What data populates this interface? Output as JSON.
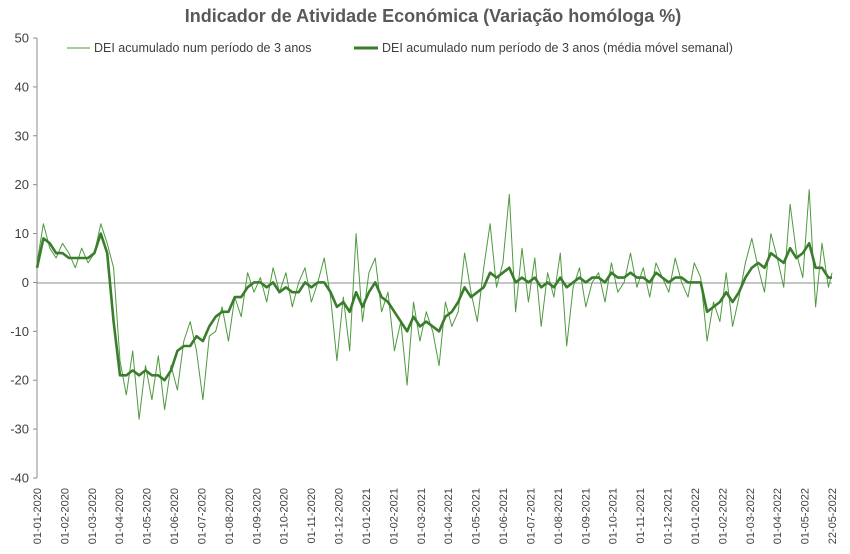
{
  "chart_data": {
    "type": "line",
    "title": "Indicador de Atividade Económica (Variação homóloga %)",
    "xlabel": "",
    "ylabel": "",
    "ylim": [
      -40,
      50
    ],
    "yticks": [
      50,
      40,
      30,
      20,
      10,
      0,
      -10,
      -20,
      -30,
      -40
    ],
    "x_tick_labels": [
      "01-01-2020",
      "01-02-2020",
      "01-03-2020",
      "01-04-2020",
      "01-05-2020",
      "01-06-2020",
      "01-07-2020",
      "01-08-2020",
      "01-09-2020",
      "01-10-2020",
      "01-11-2020",
      "01-12-2020",
      "01-01-2021",
      "01-02-2021",
      "01-03-2021",
      "01-04-2021",
      "01-05-2021",
      "01-06-2021",
      "01-07-2021",
      "01-08-2021",
      "01-09-2021",
      "01-10-2021",
      "01-11-2021",
      "01-12-2021",
      "01-01-2022",
      "01-02-2022",
      "01-03-2022",
      "01-04-2022",
      "01-05-2022",
      "22-05-2022"
    ],
    "grid": false,
    "legend_position": "top",
    "colors": {
      "daily": "#4e9a3e",
      "weekly": "#3a7d2c"
    },
    "series": [
      {
        "name": "DEI acumulado num período de 3 anos",
        "style": "thin",
        "x": [
          "2020-01-01",
          "2020-01-08",
          "2020-01-15",
          "2020-01-22",
          "2020-01-29",
          "2020-02-05",
          "2020-02-12",
          "2020-02-19",
          "2020-02-26",
          "2020-03-04",
          "2020-03-11",
          "2020-03-18",
          "2020-03-25",
          "2020-04-01",
          "2020-04-08",
          "2020-04-15",
          "2020-04-22",
          "2020-04-29",
          "2020-05-06",
          "2020-05-13",
          "2020-05-20",
          "2020-05-27",
          "2020-06-03",
          "2020-06-10",
          "2020-06-17",
          "2020-06-24",
          "2020-07-01",
          "2020-07-08",
          "2020-07-15",
          "2020-07-22",
          "2020-07-29",
          "2020-08-05",
          "2020-08-12",
          "2020-08-19",
          "2020-08-26",
          "2020-09-02",
          "2020-09-09",
          "2020-09-16",
          "2020-09-23",
          "2020-09-30",
          "2020-10-07",
          "2020-10-14",
          "2020-10-21",
          "2020-10-28",
          "2020-11-04",
          "2020-11-11",
          "2020-11-18",
          "2020-11-25",
          "2020-12-02",
          "2020-12-09",
          "2020-12-16",
          "2020-12-23",
          "2020-12-30",
          "2021-01-06",
          "2021-01-13",
          "2021-01-20",
          "2021-01-27",
          "2021-02-03",
          "2021-02-10",
          "2021-02-17",
          "2021-02-24",
          "2021-03-03",
          "2021-03-10",
          "2021-03-17",
          "2021-03-24",
          "2021-03-31",
          "2021-04-07",
          "2021-04-14",
          "2021-04-21",
          "2021-04-28",
          "2021-05-05",
          "2021-05-12",
          "2021-05-19",
          "2021-05-26",
          "2021-06-02",
          "2021-06-09",
          "2021-06-16",
          "2021-06-23",
          "2021-06-30",
          "2021-07-07",
          "2021-07-14",
          "2021-07-21",
          "2021-07-28",
          "2021-08-04",
          "2021-08-11",
          "2021-08-18",
          "2021-08-25",
          "2021-09-01",
          "2021-09-08",
          "2021-09-15",
          "2021-09-22",
          "2021-09-29",
          "2021-10-06",
          "2021-10-13",
          "2021-10-20",
          "2021-10-27",
          "2021-11-03",
          "2021-11-10",
          "2021-11-17",
          "2021-11-24",
          "2021-12-01",
          "2021-12-08",
          "2021-12-15",
          "2021-12-22",
          "2021-12-29",
          "2022-01-05",
          "2022-01-12",
          "2022-01-19",
          "2022-01-26",
          "2022-02-02",
          "2022-02-09",
          "2022-02-16",
          "2022-02-23",
          "2022-03-02",
          "2022-03-09",
          "2022-03-16",
          "2022-03-23",
          "2022-03-30",
          "2022-04-06",
          "2022-04-13",
          "2022-04-20",
          "2022-04-27",
          "2022-05-04",
          "2022-05-11",
          "2022-05-18",
          "2022-05-22"
        ],
        "y": [
          4,
          12,
          7,
          5,
          8,
          6,
          3,
          7,
          4,
          6,
          12,
          8,
          3,
          -16,
          -23,
          -14,
          -28,
          -17,
          -24,
          -15,
          -26,
          -17,
          -22,
          -12,
          -8,
          -14,
          -24,
          -11,
          -10,
          -5,
          -12,
          -3,
          -7,
          2,
          -2,
          1,
          -4,
          3,
          -2,
          2,
          -5,
          0,
          3,
          -4,
          0,
          5,
          -3,
          -16,
          -3,
          -14,
          10,
          -8,
          2,
          5,
          -6,
          -2,
          -14,
          -8,
          -21,
          -4,
          -12,
          -6,
          -10,
          -17,
          -4,
          -9,
          -6,
          6,
          -2,
          -8,
          3,
          12,
          -1,
          4,
          18,
          -6,
          7,
          -4,
          5,
          -9,
          2,
          -3,
          6,
          -13,
          -1,
          3,
          -5,
          0,
          2,
          -4,
          4,
          -2,
          0,
          6,
          -1,
          3,
          -3,
          4,
          1,
          -2,
          5,
          0,
          -3,
          4,
          1,
          -12,
          -4,
          -8,
          2,
          -9,
          -3,
          4,
          9,
          3,
          -2,
          10,
          5,
          -1,
          16,
          6,
          1,
          19,
          -5,
          8,
          -1,
          2
        ]
      },
      {
        "name": "DEI acumulado num período de 3 anos (média móvel semanal)",
        "style": "thick",
        "x": [
          "2020-01-01",
          "2020-01-08",
          "2020-01-15",
          "2020-01-22",
          "2020-01-29",
          "2020-02-05",
          "2020-02-12",
          "2020-02-19",
          "2020-02-26",
          "2020-03-04",
          "2020-03-11",
          "2020-03-18",
          "2020-03-25",
          "2020-04-01",
          "2020-04-08",
          "2020-04-15",
          "2020-04-22",
          "2020-04-29",
          "2020-05-06",
          "2020-05-13",
          "2020-05-20",
          "2020-05-27",
          "2020-06-03",
          "2020-06-10",
          "2020-06-17",
          "2020-06-24",
          "2020-07-01",
          "2020-07-08",
          "2020-07-15",
          "2020-07-22",
          "2020-07-29",
          "2020-08-05",
          "2020-08-12",
          "2020-08-19",
          "2020-08-26",
          "2020-09-02",
          "2020-09-09",
          "2020-09-16",
          "2020-09-23",
          "2020-09-30",
          "2020-10-07",
          "2020-10-14",
          "2020-10-21",
          "2020-10-28",
          "2020-11-04",
          "2020-11-11",
          "2020-11-18",
          "2020-11-25",
          "2020-12-02",
          "2020-12-09",
          "2020-12-16",
          "2020-12-23",
          "2020-12-30",
          "2021-01-06",
          "2021-01-13",
          "2021-01-20",
          "2021-01-27",
          "2021-02-03",
          "2021-02-10",
          "2021-02-17",
          "2021-02-24",
          "2021-03-03",
          "2021-03-10",
          "2021-03-17",
          "2021-03-24",
          "2021-03-31",
          "2021-04-07",
          "2021-04-14",
          "2021-04-21",
          "2021-04-28",
          "2021-05-05",
          "2021-05-12",
          "2021-05-19",
          "2021-05-26",
          "2021-06-02",
          "2021-06-09",
          "2021-06-16",
          "2021-06-23",
          "2021-06-30",
          "2021-07-07",
          "2021-07-14",
          "2021-07-21",
          "2021-07-28",
          "2021-08-04",
          "2021-08-11",
          "2021-08-18",
          "2021-08-25",
          "2021-09-01",
          "2021-09-08",
          "2021-09-15",
          "2021-09-22",
          "2021-09-29",
          "2021-10-06",
          "2021-10-13",
          "2021-10-20",
          "2021-10-27",
          "2021-11-03",
          "2021-11-10",
          "2021-11-17",
          "2021-11-24",
          "2021-12-01",
          "2021-12-08",
          "2021-12-15",
          "2021-12-22",
          "2021-12-29",
          "2022-01-05",
          "2022-01-12",
          "2022-01-19",
          "2022-01-26",
          "2022-02-02",
          "2022-02-09",
          "2022-02-16",
          "2022-02-23",
          "2022-03-02",
          "2022-03-09",
          "2022-03-16",
          "2022-03-23",
          "2022-03-30",
          "2022-04-06",
          "2022-04-13",
          "2022-04-20",
          "2022-04-27",
          "2022-05-04",
          "2022-05-11",
          "2022-05-18",
          "2022-05-22"
        ],
        "y": [
          3,
          9,
          8,
          6,
          6,
          5,
          5,
          5,
          5,
          6,
          10,
          6,
          -8,
          -19,
          -19,
          -18,
          -19,
          -18,
          -19,
          -19,
          -20,
          -18,
          -14,
          -13,
          -13,
          -11,
          -12,
          -9,
          -7,
          -6,
          -6,
          -3,
          -3,
          -1,
          0,
          0,
          -1,
          0,
          -2,
          -1,
          -2,
          -2,
          0,
          -1,
          0,
          0,
          -2,
          -5,
          -4,
          -6,
          -2,
          -5,
          -2,
          0,
          -3,
          -4,
          -6,
          -8,
          -10,
          -7,
          -9,
          -8,
          -9,
          -10,
          -7,
          -6,
          -4,
          -1,
          -3,
          -2,
          -1,
          2,
          1,
          2,
          3,
          0,
          1,
          0,
          1,
          -1,
          0,
          -1,
          1,
          -1,
          0,
          1,
          0,
          1,
          1,
          0,
          2,
          1,
          1,
          2,
          1,
          1,
          0,
          2,
          1,
          0,
          1,
          1,
          0,
          0,
          0,
          -6,
          -5,
          -4,
          -2,
          -4,
          -2,
          1,
          3,
          4,
          3,
          6,
          5,
          4,
          7,
          5,
          6,
          8,
          3,
          3,
          1,
          1
        ]
      }
    ]
  }
}
